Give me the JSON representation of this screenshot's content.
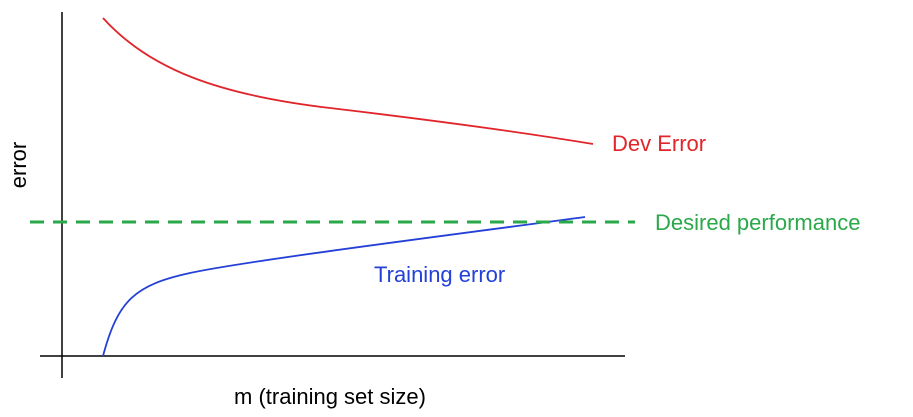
{
  "y_axis_label": "error",
  "x_axis_label": "m (training set size)",
  "curves": [
    {
      "label": "Dev Error"
    },
    {
      "label": "Training error"
    }
  ],
  "reference_line": {
    "label": "Desired performance"
  }
}
